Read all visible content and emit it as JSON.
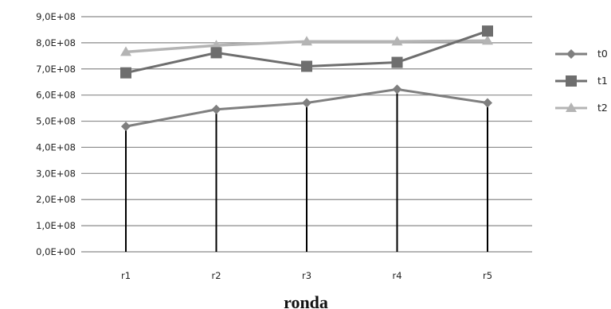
{
  "chart_data": {
    "type": "line",
    "title": "",
    "xlabel": "ronda",
    "ylabel": "",
    "categories": [
      "r1",
      "r2",
      "r3",
      "r4",
      "r5"
    ],
    "ylim": [
      0,
      900000000
    ],
    "yticks": [
      0,
      100000000,
      200000000,
      300000000,
      400000000,
      500000000,
      600000000,
      700000000,
      800000000,
      900000000
    ],
    "ytick_labels": [
      "0,0E+00",
      "1,0E+08",
      "2,0E+08",
      "3,0E+08",
      "4,0E+08",
      "5,0E+08",
      "6,0E+08",
      "7,0E+08",
      "8,0E+08",
      "9,0E+08"
    ],
    "grid": true,
    "legend_position": "right",
    "series": [
      {
        "name": "t0",
        "marker": "diamond",
        "color": "#7f7f7f",
        "values": [
          480000000,
          545000000,
          570000000,
          622000000,
          570000000
        ]
      },
      {
        "name": "t1",
        "marker": "square",
        "color": "#6e6e6e",
        "values": [
          685000000,
          762000000,
          710000000,
          725000000,
          845000000
        ]
      },
      {
        "name": "t2",
        "marker": "triangle",
        "color": "#b4b4b4",
        "values": [
          765000000,
          790000000,
          805000000,
          805000000,
          808000000
        ]
      }
    ]
  }
}
